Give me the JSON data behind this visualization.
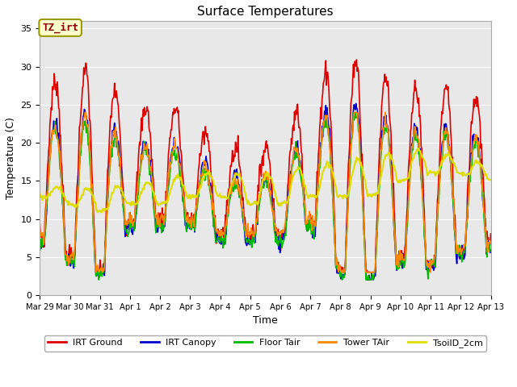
{
  "title": "Surface Temperatures",
  "xlabel": "Time",
  "ylabel": "Temperature (C)",
  "ylim": [
    0,
    36
  ],
  "yticks": [
    0,
    5,
    10,
    15,
    20,
    25,
    30,
    35
  ],
  "annotation_text": "TZ_irt",
  "annotation_color": "#880000",
  "annotation_bg": "#ffffcc",
  "annotation_border": "#999900",
  "background_color": "#e8e8e8",
  "series_order": [
    "IRT Ground",
    "IRT Canopy",
    "Floor Tair",
    "Tower TAir",
    "TsoilD_2cm"
  ],
  "series": {
    "IRT Ground": {
      "color": "#dd0000",
      "lw": 1.2
    },
    "IRT Canopy": {
      "color": "#0000cc",
      "lw": 1.2
    },
    "Floor Tair": {
      "color": "#00bb00",
      "lw": 1.2
    },
    "Tower TAir": {
      "color": "#ff8800",
      "lw": 1.2
    },
    "TsoilD_2cm": {
      "color": "#dddd00",
      "lw": 1.5
    }
  },
  "xtick_labels": [
    "Mar 29",
    "Mar 30",
    "Mar 31",
    "Apr 1",
    "Apr 2",
    "Apr 3",
    "Apr 4",
    "Apr 5",
    "Apr 6",
    "Apr 7",
    "Apr 8",
    "Apr 9",
    "Apr 10",
    "Apr 11",
    "Apr 12",
    "Apr 13"
  ],
  "num_days": 15,
  "points_per_day": 48,
  "fig_width": 6.4,
  "fig_height": 4.8,
  "dpi": 100
}
